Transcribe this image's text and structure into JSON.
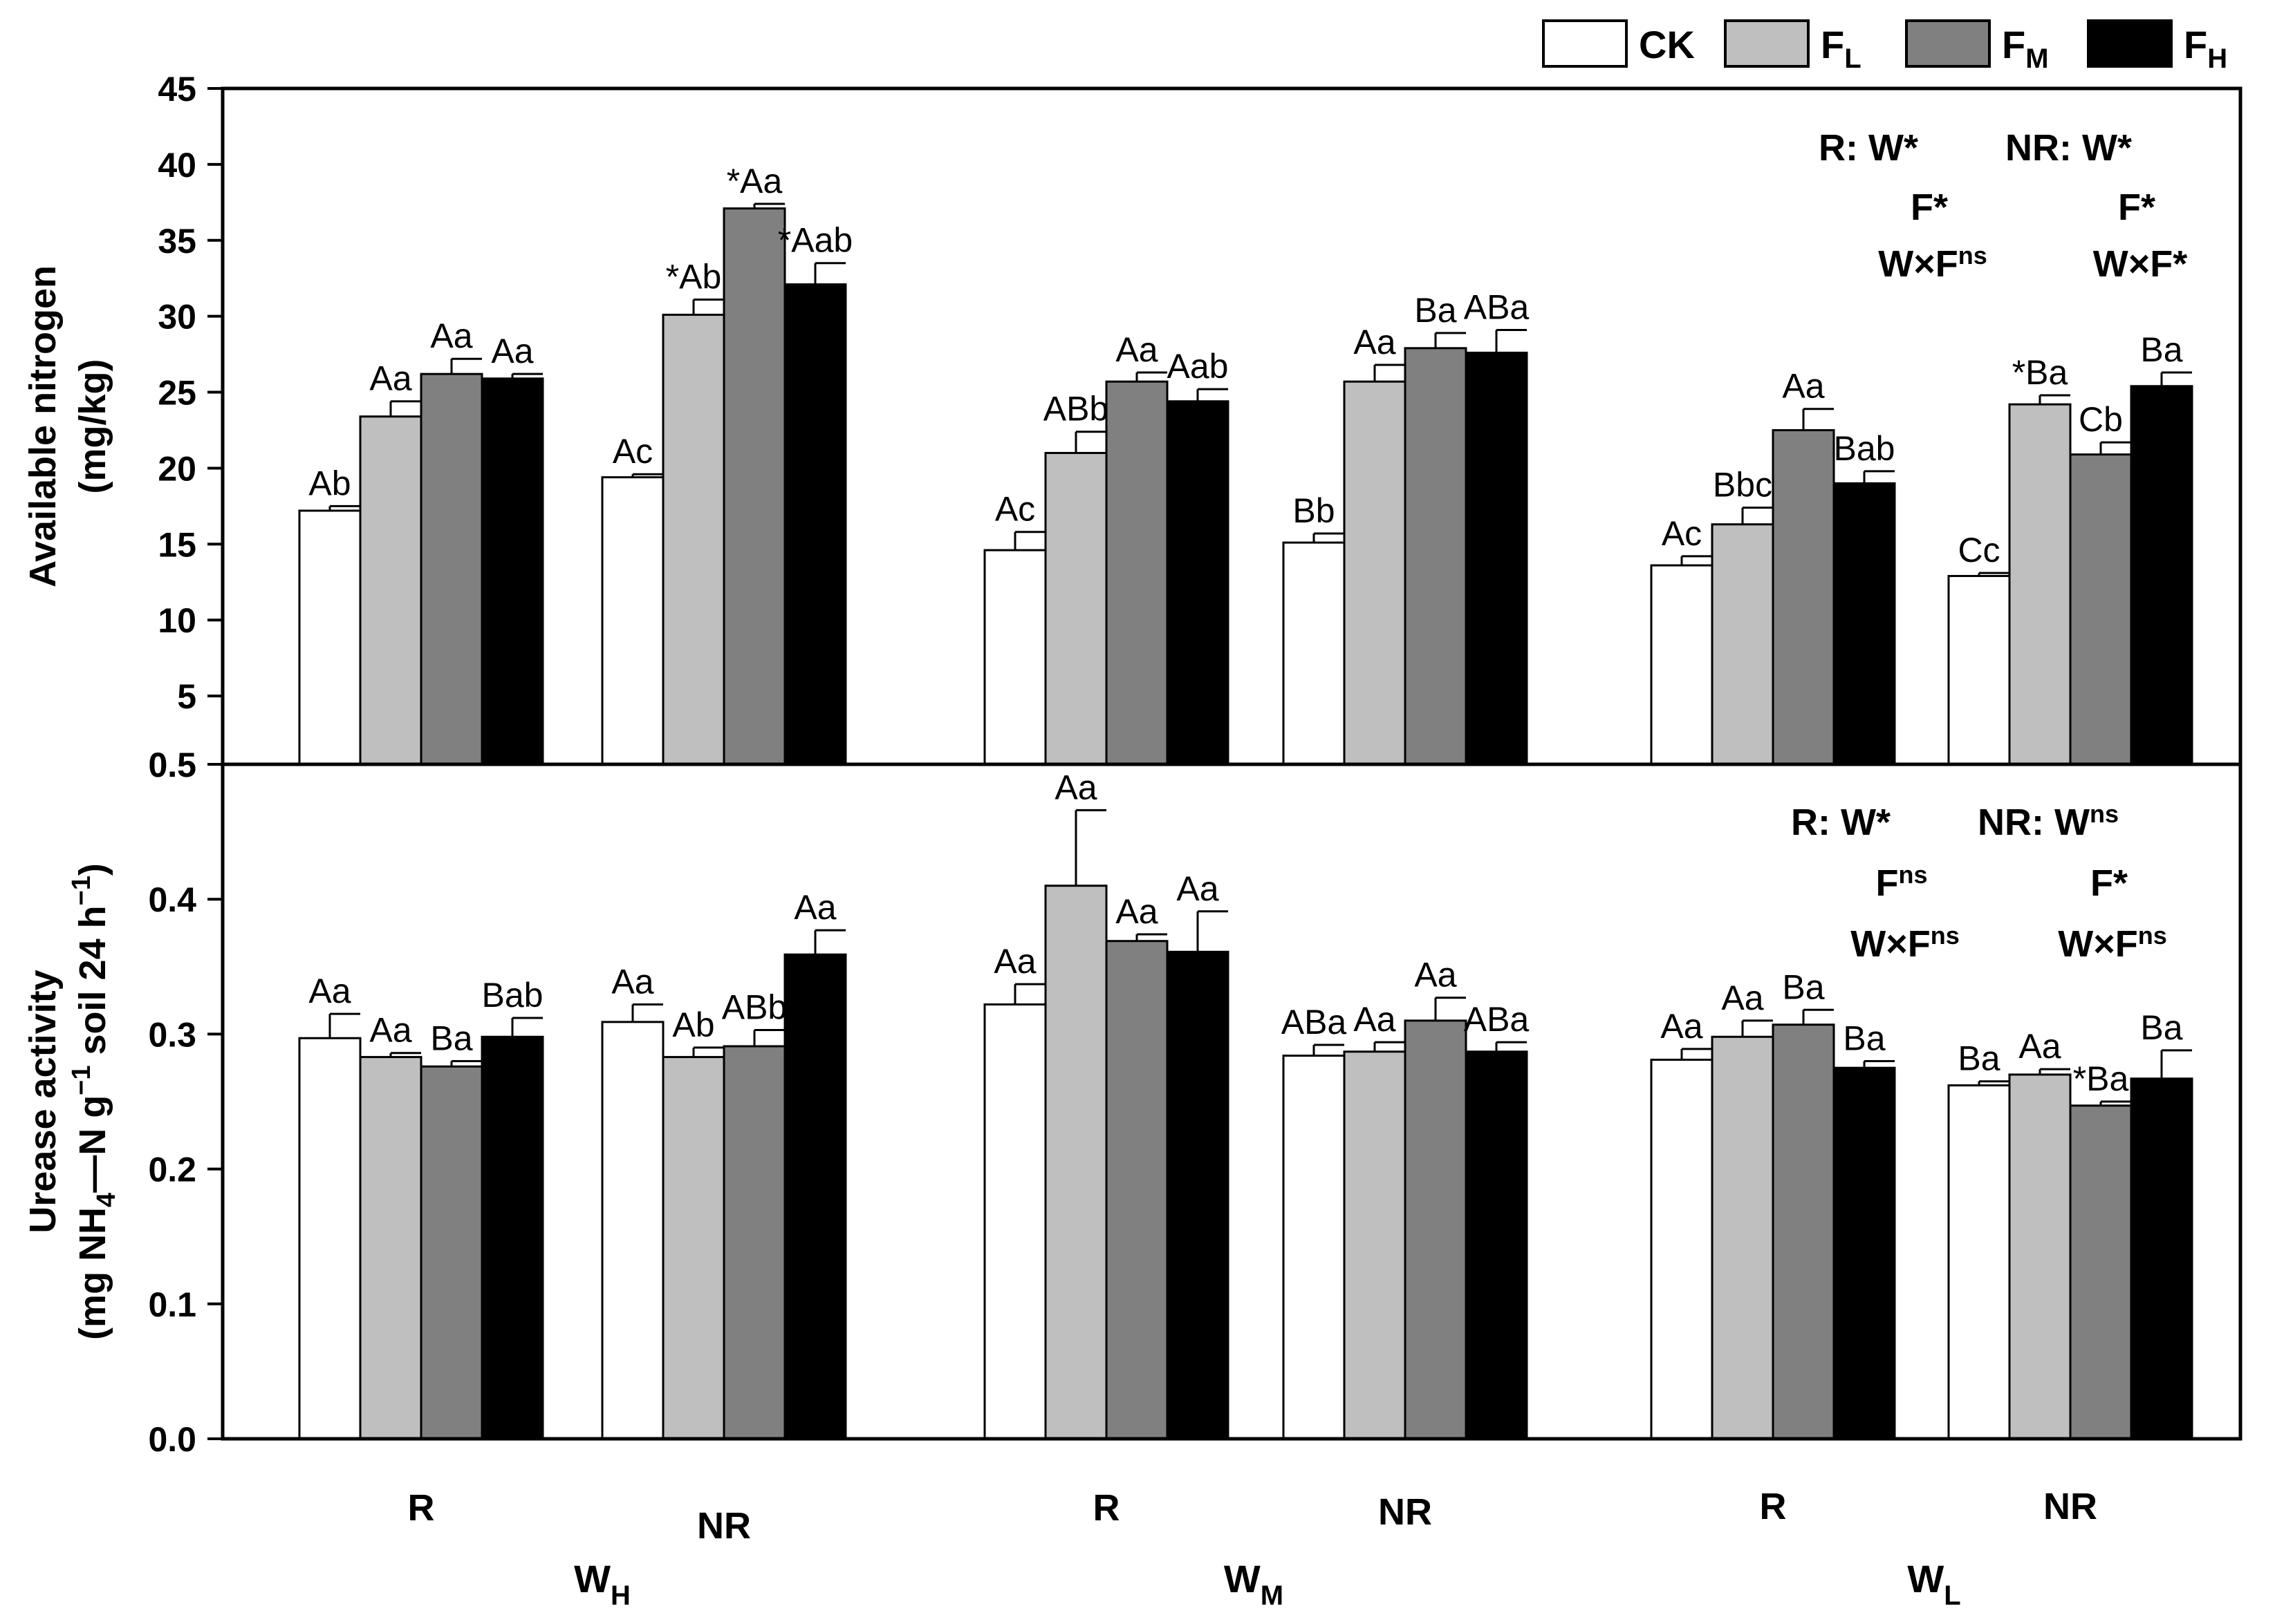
{
  "chart_data": {
    "type": "bar",
    "legend": {
      "position": "top-right",
      "entries": [
        {
          "key": "CK",
          "main": "CK",
          "sub": "",
          "color": "#ffffff"
        },
        {
          "key": "FL",
          "main": "F",
          "sub": "L",
          "color": "#bfbfbf"
        },
        {
          "key": "FM",
          "main": "F",
          "sub": "M",
          "color": "#808080"
        },
        {
          "key": "FH",
          "main": "F",
          "sub": "H",
          "color": "#000000"
        }
      ]
    },
    "categories": [
      "R",
      "NR",
      "R",
      "NR",
      "R",
      "NR"
    ],
    "groups": [
      {
        "main": "W",
        "sub": "H"
      },
      {
        "main": "W",
        "sub": "M"
      },
      {
        "main": "W",
        "sub": "L"
      }
    ],
    "panels": [
      {
        "id": "top",
        "ylabel_line1": "Available nitrogen",
        "ylabel_line2": "(mg/kg)",
        "ylim": [
          0.5,
          45
        ],
        "yticks": [
          "0.5",
          "5",
          "10",
          "15",
          "20",
          "25",
          "30",
          "35",
          "40",
          "45"
        ],
        "series": [
          {
            "name": "CK",
            "values": [
              17.2,
              19.4,
              14.6,
              15.1,
              13.6,
              12.9
            ],
            "errors": [
              0.3,
              0.2,
              1.2,
              0.6,
              0.6,
              0.2
            ],
            "labels": [
              "Ab",
              "Ac",
              "Ac",
              "Bb",
              "Ac",
              "Cc"
            ]
          },
          {
            "name": "FL",
            "values": [
              23.4,
              30.1,
              21.0,
              25.7,
              16.3,
              24.2
            ],
            "errors": [
              1.0,
              1.0,
              1.4,
              1.1,
              1.1,
              0.6
            ],
            "labels": [
              "Aa",
              "*Ab",
              "ABb",
              "Aa",
              "Bbc",
              "*Ba"
            ]
          },
          {
            "name": "FM",
            "values": [
              26.2,
              37.1,
              25.7,
              27.9,
              22.5,
              20.9
            ],
            "errors": [
              1.0,
              0.3,
              0.6,
              1.0,
              1.4,
              0.8
            ],
            "labels": [
              "Aa",
              "*Aa",
              "Aa",
              "Ba",
              "Aa",
              "Cb"
            ]
          },
          {
            "name": "FH",
            "values": [
              25.9,
              32.1,
              24.4,
              27.6,
              19.0,
              25.4
            ],
            "errors": [
              0.3,
              1.4,
              0.8,
              1.5,
              0.8,
              0.9
            ],
            "labels": [
              "Aa",
              "*Aab",
              "Aab",
              "ABa",
              "Bab",
              "Ba"
            ]
          }
        ],
        "stats": [
          {
            "prefix": "R: ",
            "lines": [
              [
                "W",
                "*"
              ],
              [
                "F",
                "*"
              ],
              [
                "W×F",
                "ns"
              ]
            ]
          },
          {
            "prefix": "NR: ",
            "lines": [
              [
                "W",
                "*"
              ],
              [
                "F",
                "*"
              ],
              [
                "W×F",
                "*"
              ]
            ]
          }
        ]
      },
      {
        "id": "bottom",
        "ylabel_line1": "Urease activity",
        "ylabel_line2_parts": [
          "(mg NH",
          "4",
          "—N g",
          "−1",
          " soil 24 h",
          "−1",
          ")"
        ],
        "ylim": [
          0,
          0.5
        ],
        "yticks": [
          "0.0",
          "0.1",
          "0.2",
          "0.3",
          "0.4",
          "0.5"
        ],
        "series": [
          {
            "name": "CK",
            "values": [
              0.297,
              0.309,
              0.322,
              0.284,
              0.281,
              0.262
            ],
            "errors": [
              0.018,
              0.013,
              0.015,
              0.008,
              0.008,
              0.003
            ],
            "labels": [
              "Aa",
              "Aa",
              "Aa",
              "ABa",
              "Aa",
              "Ba"
            ]
          },
          {
            "name": "FL",
            "values": [
              0.283,
              0.283,
              0.41,
              0.287,
              0.298,
              0.27
            ],
            "errors": [
              0.003,
              0.007,
              0.056,
              0.007,
              0.012,
              0.004
            ],
            "labels": [
              "Aa",
              "Ab",
              "Aa",
              "Aa",
              "Aa",
              "Aa"
            ]
          },
          {
            "name": "FM",
            "values": [
              0.276,
              0.291,
              0.369,
              0.31,
              0.307,
              0.247
            ],
            "errors": [
              0.004,
              0.012,
              0.005,
              0.017,
              0.011,
              0.003
            ],
            "labels": [
              "Ba",
              "ABb",
              "Aa",
              "Aa",
              "Ba",
              "*Ba"
            ]
          },
          {
            "name": "FH",
            "values": [
              0.298,
              0.359,
              0.361,
              0.287,
              0.275,
              0.267
            ],
            "errors": [
              0.014,
              0.018,
              0.03,
              0.007,
              0.005,
              0.021
            ],
            "labels": [
              "Bab",
              "Aa",
              "Aa",
              "ABa",
              "Ba",
              "Ba"
            ]
          }
        ],
        "stats": [
          {
            "prefix": "R: ",
            "lines": [
              [
                "W",
                "*"
              ],
              [
                "F",
                "ns"
              ],
              [
                "W×F",
                "ns"
              ]
            ]
          },
          {
            "prefix": "NR: ",
            "lines": [
              [
                "W",
                "ns"
              ],
              [
                "F",
                "*"
              ],
              [
                "W×F",
                "ns"
              ]
            ]
          }
        ]
      }
    ]
  }
}
